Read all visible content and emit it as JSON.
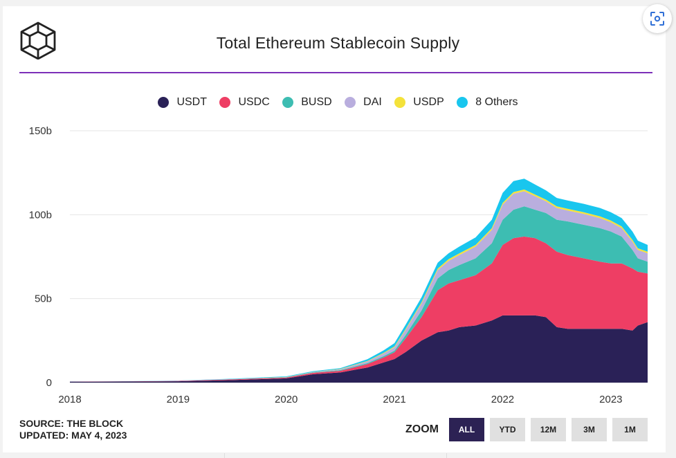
{
  "colors": {
    "usdt": "#2a2157",
    "usdc": "#ee3e64",
    "busd": "#3dbdb2",
    "dai": "#b9aede",
    "usdp": "#f4e23a",
    "others": "#19c6ee",
    "accent_rule": "#7c2fb8"
  },
  "icons": {
    "logo": "the-block-cube-logo",
    "scan": "scan-icon"
  },
  "zoom": {
    "label": "ZOOM",
    "buttons": [
      "ALL",
      "YTD",
      "12M",
      "3M",
      "1M"
    ],
    "active": "ALL"
  },
  "source": {
    "line1": "SOURCE: THE BLOCK",
    "line2": "UPDATED: MAY 4, 2023"
  },
  "chart_data": {
    "type": "area",
    "stacked": true,
    "title": "Total Ethereum Stablecoin Supply",
    "xlabel": "",
    "ylabel": "",
    "xlim": [
      2018.0,
      2023.34
    ],
    "ylim": [
      0,
      150
    ],
    "x_ticks": [
      "2018",
      "2019",
      "2020",
      "2021",
      "2022",
      "2023"
    ],
    "y_ticks": [
      "0",
      "50b",
      "100b",
      "150b"
    ],
    "grid": true,
    "legend_position": "top-center",
    "x": [
      2018.0,
      2018.5,
      2019.0,
      2019.5,
      2020.0,
      2020.25,
      2020.5,
      2020.75,
      2020.9,
      2021.0,
      2021.1,
      2021.25,
      2021.4,
      2021.5,
      2021.6,
      2021.75,
      2021.9,
      2022.0,
      2022.1,
      2022.2,
      2022.3,
      2022.4,
      2022.5,
      2022.6,
      2022.75,
      2022.9,
      2023.0,
      2023.1,
      2023.2,
      2023.25,
      2023.34
    ],
    "series": [
      {
        "name": "USDT",
        "values": [
          0.5,
          0.6,
          0.8,
          1.5,
          2.5,
          5.0,
          6.0,
          9.0,
          12.0,
          14.0,
          18.0,
          25.0,
          30.0,
          31.0,
          33.0,
          34.0,
          37.0,
          40.0,
          40.0,
          40.0,
          40.0,
          39.0,
          33.0,
          32.0,
          32.0,
          32.0,
          32.0,
          32.0,
          31.0,
          34.0,
          36.0
        ]
      },
      {
        "name": "USDC",
        "values": [
          0.1,
          0.1,
          0.2,
          0.4,
          0.5,
          0.8,
          1.0,
          2.0,
          3.0,
          4.0,
          8.0,
          14.0,
          25.0,
          28.0,
          28.0,
          30.0,
          34.0,
          42.0,
          46.0,
          47.0,
          46.0,
          44.0,
          45.0,
          44.0,
          42.0,
          40.0,
          39.0,
          39.0,
          37.0,
          32.0,
          29.0
        ]
      },
      {
        "name": "BUSD",
        "values": [
          0.0,
          0.0,
          0.0,
          0.1,
          0.2,
          0.3,
          0.4,
          0.6,
          0.8,
          1.0,
          2.0,
          4.0,
          7.0,
          8.0,
          9.0,
          10.0,
          12.0,
          15.0,
          17.0,
          18.0,
          17.0,
          18.0,
          19.0,
          20.0,
          20.0,
          20.0,
          19.0,
          16.0,
          11.0,
          8.0,
          7.0
        ]
      },
      {
        "name": "DAI",
        "values": [
          0.0,
          0.0,
          0.1,
          0.1,
          0.1,
          0.2,
          0.5,
          1.0,
          1.5,
          2.0,
          3.0,
          4.0,
          5.0,
          5.5,
          6.0,
          7.0,
          8.0,
          9.0,
          9.5,
          9.0,
          8.0,
          7.0,
          7.0,
          6.5,
          6.5,
          6.0,
          5.5,
          5.0,
          5.0,
          5.0,
          5.0
        ]
      },
      {
        "name": "USDP",
        "values": [
          0.0,
          0.0,
          0.0,
          0.0,
          0.1,
          0.1,
          0.2,
          0.3,
          0.4,
          0.5,
          0.6,
          0.8,
          0.9,
          1.0,
          1.0,
          1.0,
          1.0,
          1.0,
          1.0,
          1.0,
          1.0,
          1.0,
          1.0,
          1.0,
          1.0,
          1.0,
          1.0,
          1.0,
          1.0,
          1.0,
          1.0
        ]
      },
      {
        "name": "8 Others",
        "values": [
          0.1,
          0.1,
          0.1,
          0.2,
          0.3,
          0.4,
          0.5,
          1.0,
          1.5,
          2.0,
          2.5,
          3.0,
          3.5,
          3.5,
          4.0,
          4.5,
          5.0,
          6.0,
          6.5,
          6.5,
          6.0,
          5.5,
          5.0,
          5.0,
          5.0,
          5.0,
          5.0,
          5.0,
          5.0,
          4.5,
          4.0
        ]
      }
    ]
  }
}
